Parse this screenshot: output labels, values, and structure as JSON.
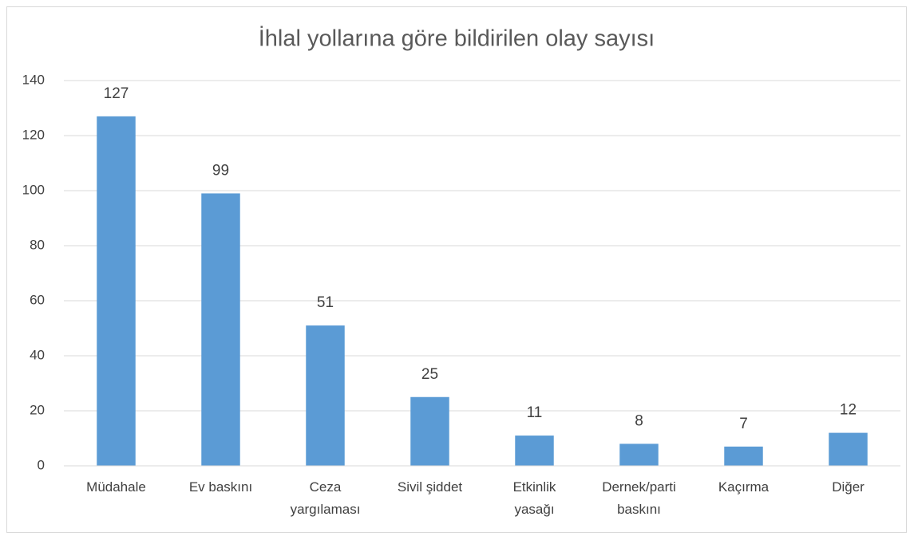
{
  "chart_data": {
    "type": "bar",
    "title": "İhlal yollarına göre bildirilen olay sayısı",
    "categories": [
      "Müdahale",
      "Ev baskını",
      "Ceza yargılaması",
      "Sivil şiddet",
      "Etkinlik yasağı",
      "Dernek/parti baskını",
      "Kaçırma",
      "Diğer"
    ],
    "values": [
      127,
      99,
      51,
      25,
      11,
      8,
      7,
      12
    ],
    "color": "#5b9bd5",
    "ylim": [
      0,
      140
    ],
    "yticks": [
      0,
      20,
      40,
      60,
      80,
      100,
      120,
      140
    ],
    "grid": true
  }
}
